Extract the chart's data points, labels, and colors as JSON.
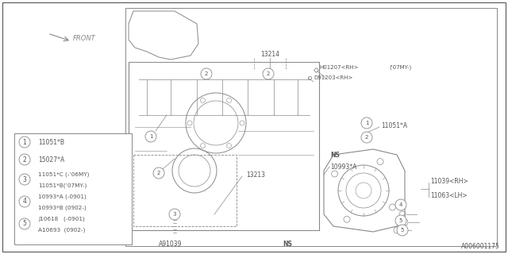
{
  "bg_color": "#ffffff",
  "line_color": "#888888",
  "dark_line": "#555555",
  "text_color": "#555555",
  "title_bottom": "A006001175",
  "front_label": "FRONT",
  "legend_rows": [
    {
      "num": "1",
      "lines": [
        "11051*B"
      ]
    },
    {
      "num": "2",
      "lines": [
        "15027*A"
      ]
    },
    {
      "num": "3",
      "lines": [
        "11051*C (-’06MY)",
        "11051*B(’07MY-)"
      ]
    },
    {
      "num": "4",
      "lines": [
        "10993*A (-0901)",
        "10993*B (0902-)"
      ]
    },
    {
      "num": "5",
      "lines": [
        "J10618   (-0901)",
        "A10693  (0902-)"
      ]
    }
  ]
}
